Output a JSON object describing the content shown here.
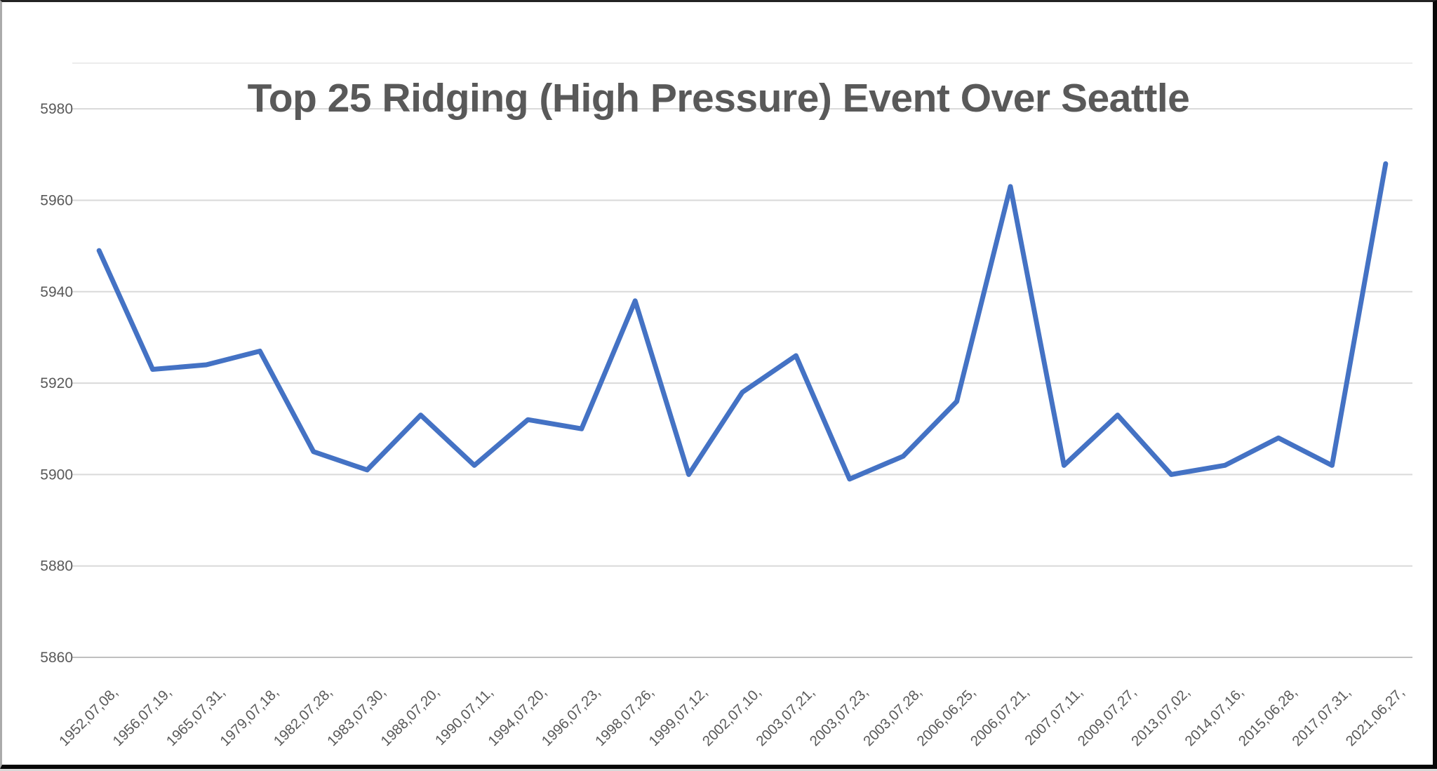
{
  "frame": {
    "background": "#ffffff",
    "border_color": "#000000"
  },
  "chart_data": {
    "type": "line",
    "title": "Top 25 Ridging (High Pressure) Event Over Seattle",
    "categories": [
      "1952,07,08,",
      "1956,07,19,",
      "1965,07,31,",
      "1979,07,18,",
      "1982,07,28,",
      "1983,07,30,",
      "1988,07,20,",
      "1990,07,11,",
      "1994,07,20,",
      "1996,07,23,",
      "1998,07,26,",
      "1999,07,12,",
      "2002,07,10,",
      "2003,07,21,",
      "2003,07,23,",
      "2003,07,28,",
      "2006,06,25,",
      "2006,07,21,",
      "2007,07,11,",
      "2009,07,27,",
      "2013,07,02,",
      "2014,07,16,",
      "2015,06,28,",
      "2017,07,31,",
      "2021,06,27,"
    ],
    "values": [
      5949,
      5923,
      5924,
      5927,
      5905,
      5901,
      5913,
      5902,
      5912,
      5910,
      5938,
      5900,
      5918,
      5926,
      5899,
      5904,
      5916,
      5963,
      5902,
      5913,
      5900,
      5902,
      5908,
      5902,
      5968
    ],
    "xlabel": "",
    "ylabel": "",
    "y_ticks": [
      5860,
      5880,
      5900,
      5920,
      5940,
      5960,
      5980
    ],
    "ylim": [
      5860,
      5990
    ],
    "grid": true,
    "legend": false,
    "colors": {
      "line": "#4472C4",
      "gridline": "#D9D9D9",
      "axis_line": "#BFBFBF",
      "text": "#595959",
      "title": "#595959",
      "plot_top_border": "#ECECEC"
    }
  }
}
